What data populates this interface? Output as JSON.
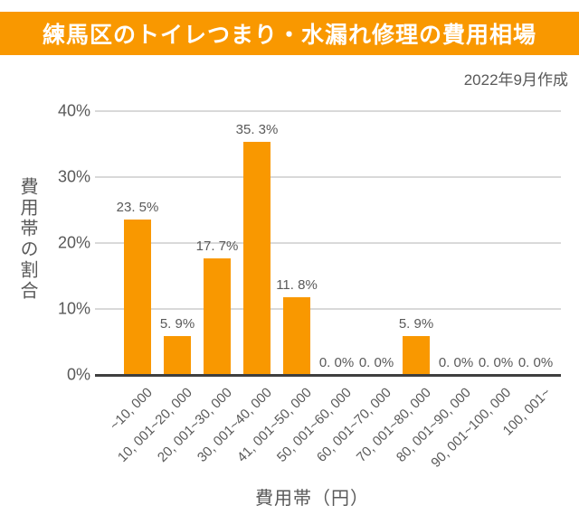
{
  "header": {
    "title": "練馬区のトイレつまり・水漏れ修理の費用相場",
    "date_note": "2022年9月作成"
  },
  "chart_data": {
    "type": "bar",
    "title": "練馬区のトイレつまり・水漏れ修理の費用相場",
    "subtitle": "2022年9月作成",
    "xlabel": "費用帯（円）",
    "ylabel": "費用帯の割合",
    "categories": [
      "~10, 000",
      "10, 001~20, 000",
      "20, 001~30, 000",
      "30, 001~40, 000",
      "41, 001~50, 000",
      "50, 001~60, 000",
      "60, 001~70, 000",
      "70, 001~80, 000",
      "80, 001~90, 000",
      "90, 001~100, 000",
      "100, 001~"
    ],
    "values": [
      23.5,
      5.9,
      17.7,
      35.3,
      11.8,
      0.0,
      0.0,
      5.9,
      0.0,
      0.0,
      0.0
    ],
    "value_labels": [
      "23. 5%",
      "5. 9%",
      "17. 7%",
      "35. 3%",
      "11. 8%",
      "0. 0%",
      "0. 0%",
      "5. 9%",
      "0. 0%",
      "0. 0%",
      "0. 0%"
    ],
    "ytick_values": [
      0,
      10,
      20,
      30,
      40
    ],
    "ytick_labels": [
      "0%",
      "10%",
      "20%",
      "30%",
      "40%"
    ],
    "ylim": [
      0,
      40
    ],
    "grid": true,
    "legend": false,
    "bar_color": "#F99800"
  },
  "colors": {
    "banner": "#F99800",
    "bar": "#F99800",
    "text_gray": "#595959",
    "gridline": "#D9D9D9",
    "axis": "#3F3F3F",
    "background": "#FFFFFF",
    "title_text": "#FFFFFF"
  }
}
